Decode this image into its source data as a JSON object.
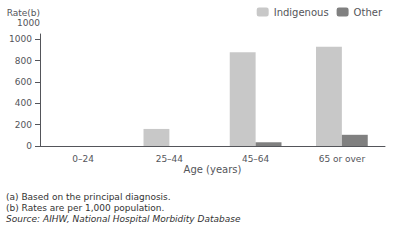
{
  "chart_data": {
    "type": "bar",
    "categories": [
      "0–24",
      "25–44",
      "45–64",
      "65 or over"
    ],
    "series": [
      {
        "name": "Indigenous",
        "color": "#c8c8c8",
        "values": [
          0,
          160,
          880,
          930
        ]
      },
      {
        "name": "Other",
        "color": "#808080",
        "values": [
          0,
          0,
          35,
          105
        ]
      }
    ],
    "xlabel": "Age (years)",
    "ylabel": "Rate(b)\n1000",
    "ylim": [
      0,
      1050
    ],
    "yticks": [
      0,
      200,
      400,
      600,
      800,
      1000
    ],
    "grid": false,
    "legend": "top",
    "annotations": [
      "(a) Based on the principal diagnosis.",
      "(b) Rates are per 1,000 population.",
      "Source: AIHW, National Hospital Morbidity Database"
    ]
  }
}
